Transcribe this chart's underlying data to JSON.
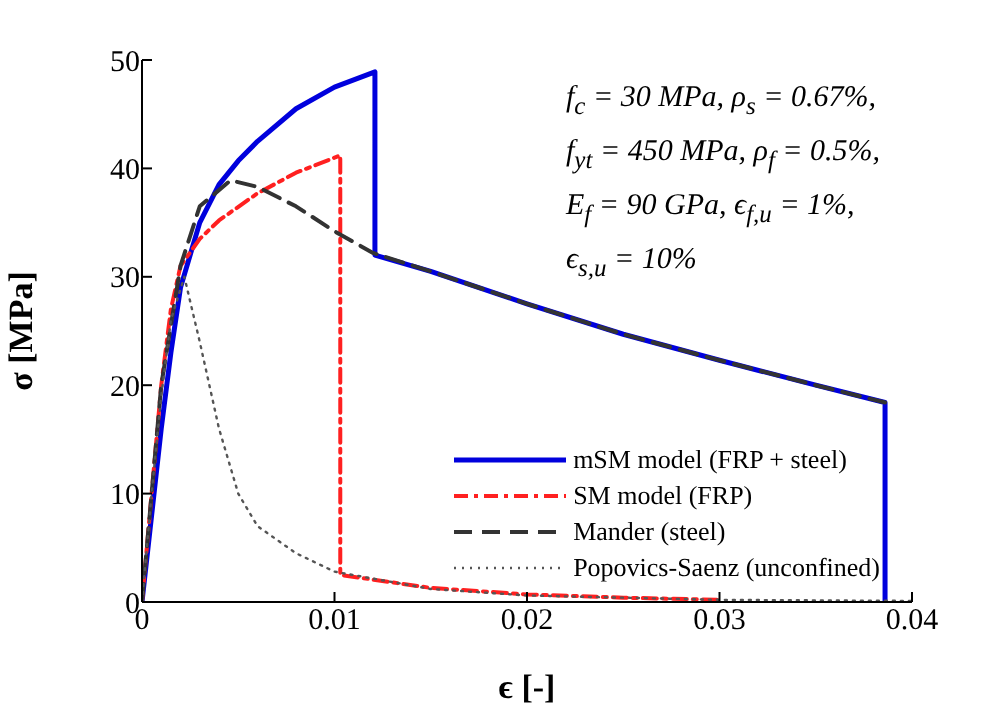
{
  "chart_data": {
    "type": "line",
    "xlabel": "ϵ [-]",
    "ylabel": "σ [MPa]",
    "xlim": [
      0,
      0.04
    ],
    "xticks": [
      0,
      0.01,
      0.02,
      0.03,
      0.04
    ],
    "ylim": [
      0,
      50
    ],
    "yticks": [
      0,
      10,
      20,
      30,
      40,
      50
    ],
    "grid": false,
    "legend": "bottom right",
    "marker": "none",
    "annotations": [
      "f$_{c}$ = 30 MPa, ρ$_{s}$ = 0.67%,",
      "f$_{yt}$ = 450 MPa, ρ$_{f}$ = 0.5%,",
      "E$_{f}$ = 90 GPa, ϵ$_{f,u}$ = 1%,",
      "ϵ$_{s,u}$ = 10%"
    ],
    "series": [
      {
        "name": "mSM model (FRP + steel)",
        "color": "#0000dd",
        "line_style": "solid",
        "x": [
          0,
          0.0005,
          0.001,
          0.0015,
          0.002,
          0.003,
          0.004,
          0.005,
          0.006,
          0.008,
          0.01,
          0.0121,
          0.0121,
          0.015,
          0.02,
          0.025,
          0.03,
          0.035,
          0.0386,
          0.0386
        ],
        "values": [
          0,
          8,
          16,
          23,
          29,
          35,
          38.5,
          40.7,
          42.5,
          45.5,
          47.5,
          48.9,
          32,
          30.5,
          27.5,
          24.7,
          22.3,
          20,
          18.4,
          0
        ]
      },
      {
        "name": "SM model (FRP)",
        "color": "#ff2020",
        "line_style": "dashdot",
        "x": [
          0,
          0.0005,
          0.001,
          0.0015,
          0.002,
          0.003,
          0.004,
          0.006,
          0.008,
          0.0103,
          0.0103,
          0.015,
          0.02,
          0.025,
          0.03
        ],
        "values": [
          0,
          10,
          20,
          27,
          31,
          33.5,
          35.2,
          37.7,
          39.6,
          41.2,
          2.5,
          1.3,
          0.7,
          0.4,
          0.2
        ]
      },
      {
        "name": "Mander (steel)",
        "color": "#333333",
        "line_style": "dashed",
        "x": [
          0,
          0.001,
          0.002,
          0.003,
          0.0046,
          0.006,
          0.008,
          0.01,
          0.012,
          0.015,
          0.02,
          0.025,
          0.03,
          0.035,
          0.0386
        ],
        "values": [
          0,
          20,
          31,
          36.5,
          38.9,
          38.3,
          36.5,
          34.2,
          32.2,
          30.5,
          27.5,
          24.7,
          22.3,
          20,
          18.4
        ]
      },
      {
        "name": "Popovics-Saenz (unconfined)",
        "color": "#555555",
        "line_style": "dotted",
        "x": [
          0,
          0.0005,
          0.001,
          0.0015,
          0.0022,
          0.003,
          0.004,
          0.005,
          0.006,
          0.008,
          0.01,
          0.015,
          0.02,
          0.03,
          0.04
        ],
        "values": [
          0,
          10,
          19,
          26,
          30,
          24,
          16,
          10,
          7,
          4.5,
          2.8,
          1.2,
          0.6,
          0.2,
          0.1
        ]
      }
    ]
  }
}
